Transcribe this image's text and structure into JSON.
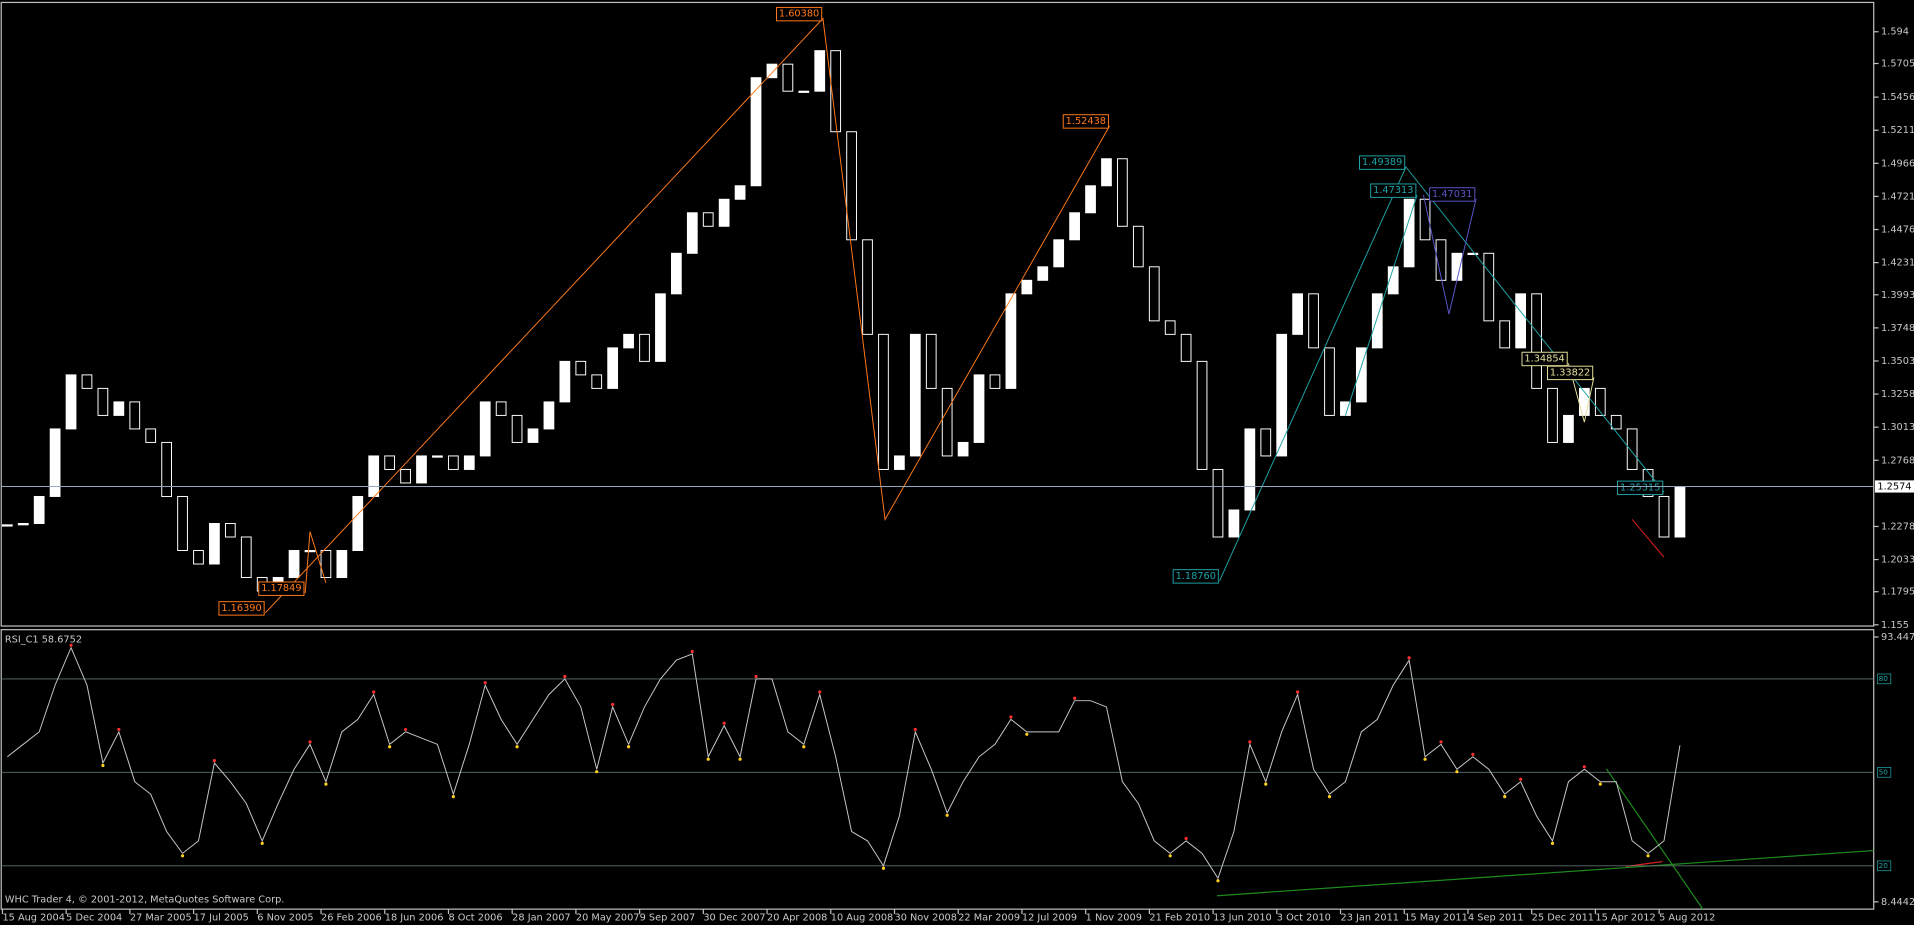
{
  "chart_data": [
    {
      "type": "candlestick",
      "color": "#ffffff",
      "values": [
        1.229,
        1.23,
        1.25,
        1.3,
        1.34,
        1.33,
        1.31,
        1.32,
        1.3,
        1.29,
        1.25,
        1.21,
        1.2,
        1.23,
        1.22,
        1.19,
        1.18,
        1.19,
        1.21,
        1.21,
        1.19,
        1.21,
        1.25,
        1.28,
        1.27,
        1.26,
        1.28,
        1.28,
        1.27,
        1.28,
        1.32,
        1.31,
        1.29,
        1.3,
        1.32,
        1.35,
        1.34,
        1.33,
        1.36,
        1.37,
        1.35,
        1.4,
        1.43,
        1.46,
        1.45,
        1.47,
        1.48,
        1.56,
        1.57,
        1.55,
        1.55,
        1.58,
        1.52,
        1.44,
        1.37,
        1.27,
        1.28,
        1.37,
        1.33,
        1.28,
        1.29,
        1.34,
        1.33,
        1.4,
        1.41,
        1.42,
        1.44,
        1.46,
        1.48,
        1.5,
        1.45,
        1.42,
        1.38,
        1.37,
        1.35,
        1.27,
        1.22,
        1.24,
        1.3,
        1.28,
        1.37,
        1.4,
        1.36,
        1.31,
        1.32,
        1.36,
        1.4,
        1.42,
        1.47,
        1.44,
        1.41,
        1.43,
        1.43,
        1.38,
        1.36,
        1.4,
        1.33,
        1.29,
        1.31,
        1.33,
        1.31,
        1.3,
        1.27,
        1.25,
        1.22,
        1.2574
      ],
      "ylim": [
        1.1541,
        1.6157
      ],
      "yticks": [
        1.594,
        1.5705,
        1.5456,
        1.5211,
        1.4966,
        1.4721,
        1.4476,
        1.4231,
        1.3993,
        1.3748,
        1.3503,
        1.3258,
        1.3013,
        1.2768,
        1.2278,
        1.2033,
        1.1795,
        1.155
      ],
      "current_price": 1.2574,
      "zigzags": [
        {
          "color": "#ff7a1a",
          "points": [
            {
              "x": 16.2,
              "value": {
                "value": 1.1639,
                "label": "1.16390"
              }
            },
            {
              "x": 51.2,
              "value": {
                "value": 1.6038,
                "label": "1.60380"
              }
            },
            {
              "x": 55.1,
              "value": 1.233
            },
            {
              "x": 69.2,
              "value": {
                "value": 1.52438,
                "label": "1.52438"
              }
            }
          ]
        },
        {
          "color": "#ff7a1a",
          "points": [
            {
              "x": 18.7,
              "value": {
                "value": 1.17849,
                "label": "1.17849"
              }
            },
            {
              "x": 19.0,
              "value": 1.224
            },
            {
              "x": 20.0,
              "value": 1.186
            }
          ]
        },
        {
          "color": "#1fa3a8",
          "points": [
            {
              "x": 76.1,
              "value": {
                "value": 1.1876,
                "label": "1.18760"
              }
            },
            {
              "x": 87.8,
              "value": {
                "value": 1.49389,
                "label": "1.49389"
              }
            },
            {
              "x": 104.0,
              "value": {
                "value": 1.25315,
                "label": "1.25315"
              }
            }
          ]
        },
        {
          "color": "#1fa3a8",
          "points": [
            {
              "x": 84.0,
              "value": 1.31
            },
            {
              "x": 88.5,
              "value": {
                "value": 1.47313,
                "label": "1.47313"
              }
            }
          ]
        },
        {
          "color": "#5a56c8",
          "points": [
            {
              "x": 88.9,
              "value": 1.4731
            },
            {
              "x": 90.5,
              "value": 1.385
            },
            {
              "x": 92.2,
              "value": {
                "value": 1.47031,
                "label": "1.47031"
              }
            }
          ]
        },
        {
          "color": "#e6e09a",
          "points": [
            {
              "x": 98.0,
              "value": {
                "value": 1.34854,
                "label": "1.34854"
              }
            },
            {
              "x": 99.0,
              "value": 1.305
            },
            {
              "x": 99.6,
              "value": {
                "value": 1.33822,
                "label": "1.33822"
              }
            }
          ]
        },
        {
          "color": "#e02020",
          "points": [
            {
              "x": 102.0,
              "value": 1.233
            },
            {
              "x": 104.0,
              "value": 1.205
            }
          ]
        }
      ]
    },
    {
      "type": "line",
      "title": "RSI_C1 58.6752",
      "color": "#c8c8c8",
      "categories": [
        "15 Aug 2004",
        null,
        null,
        null,
        "5 Dec 2004",
        null,
        null,
        null,
        "27 Mar 2005",
        null,
        null,
        null,
        "17 Jul 2005",
        null,
        null,
        null,
        "6 Nov 2005",
        null,
        null,
        null,
        "26 Feb 2006",
        null,
        null,
        null,
        "18 Jun 2006",
        null,
        null,
        null,
        "8 Oct 2006",
        null,
        null,
        null,
        "28 Jan 2007",
        null,
        null,
        null,
        "20 May 2007",
        null,
        null,
        null,
        "9 Sep 2007",
        null,
        null,
        null,
        "30 Dec 2007",
        null,
        null,
        null,
        "20 Apr 2008",
        null,
        null,
        null,
        "10 Aug 2008",
        null,
        null,
        null,
        "30 Nov 2008",
        null,
        null,
        null,
        "22 Mar 2009",
        null,
        null,
        null,
        "12 Jul 2009",
        null,
        null,
        null,
        "1 Nov 2009",
        null,
        null,
        null,
        "21 Feb 2010",
        null,
        null,
        null,
        "13 Jun 2010",
        null,
        null,
        null,
        "3 Oct 2010",
        null,
        null,
        null,
        "23 Jan 2011",
        null,
        null,
        null,
        "15 May 2011",
        null,
        null,
        null,
        "4 Sep 2011",
        null,
        null,
        null,
        "25 Dec 2011",
        null,
        null,
        null,
        "15 Apr 2012",
        null,
        null,
        null,
        "5 Aug 2012",
        null
      ],
      "values": [
        55,
        59,
        63,
        78,
        90,
        78,
        53,
        63,
        47,
        43,
        31,
        24,
        28,
        53,
        47,
        40,
        28,
        40,
        51,
        59,
        47,
        63,
        67,
        75,
        59,
        63,
        61,
        59,
        43,
        59,
        78,
        67,
        59,
        67,
        75,
        80,
        71,
        51,
        71,
        59,
        71,
        80,
        86,
        88,
        55,
        65,
        55,
        80,
        80,
        63,
        59,
        75,
        55,
        31,
        28,
        20,
        36,
        63,
        51,
        37,
        47,
        55,
        59,
        67,
        63,
        63,
        63,
        73,
        73,
        71,
        47,
        40,
        28,
        24,
        28,
        24,
        16,
        31,
        59,
        47,
        63,
        75,
        51,
        43,
        47,
        63,
        67,
        78,
        86,
        55,
        59,
        51,
        55,
        51,
        43,
        47,
        36,
        28,
        47,
        51,
        47,
        47,
        28,
        24,
        28,
        58.6752
      ],
      "ylim": [
        6.1,
        95.4
      ],
      "yticks": [
        93.4476,
        8.4442
      ],
      "levels": [
        80,
        50,
        20
      ]
    }
  ],
  "footer": "WHC Trader 4, © 2001-2012, MetaQuotes Software Corp."
}
